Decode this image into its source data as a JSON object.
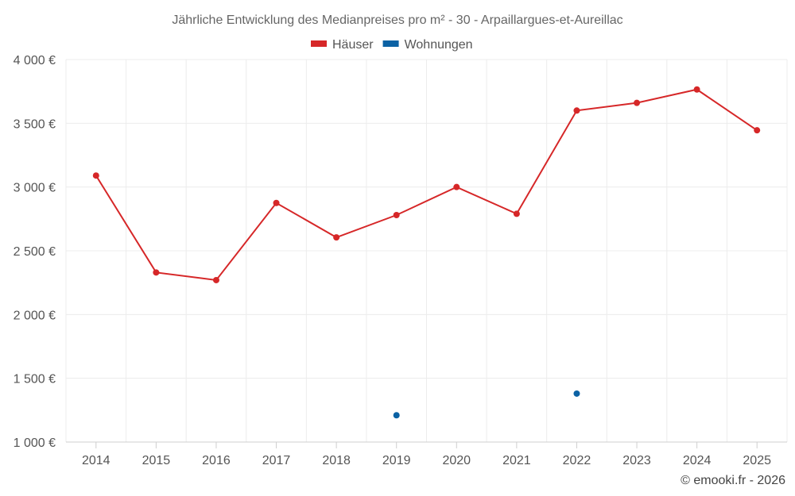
{
  "chart_data": {
    "type": "line",
    "title": "Jährliche Entwicklung des Medianpreises pro m² - 30 - Arpaillargues-et-Aureillac",
    "categories": [
      "2014",
      "2015",
      "2016",
      "2017",
      "2018",
      "2019",
      "2020",
      "2021",
      "2022",
      "2023",
      "2024",
      "2025"
    ],
    "ylim": [
      1000,
      4000
    ],
    "yticks": [
      1000,
      1500,
      2000,
      2500,
      3000,
      3500,
      4000
    ],
    "ytick_labels": [
      "1 000 €",
      "1 500 €",
      "2 000 €",
      "2 500 €",
      "3 000 €",
      "3 500 €",
      "4 000 €"
    ],
    "grid": true,
    "legend_position": "top-center",
    "series": [
      {
        "name": "Häuser",
        "color": "#d62728",
        "values": [
          3090,
          2330,
          2270,
          2875,
          2605,
          2780,
          3000,
          2790,
          3600,
          3660,
          3765,
          3445
        ]
      },
      {
        "name": "Wohnungen",
        "color": "#0b62a4",
        "values": [
          null,
          null,
          null,
          null,
          null,
          1210,
          null,
          null,
          1380,
          null,
          null,
          null
        ]
      }
    ]
  },
  "credit": "© emooki.fr - 2026"
}
